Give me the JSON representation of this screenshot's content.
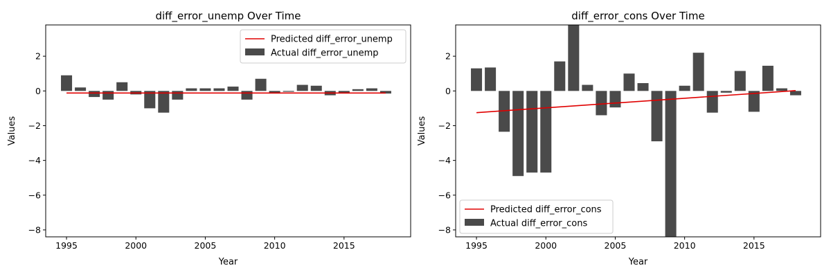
{
  "charts": [
    {
      "type": "bar",
      "title": "diff_error_unemp Over Time",
      "xlabel": "Year",
      "ylabel": "Values",
      "legend_position": "upper-right",
      "x_ticks": [
        1995,
        2000,
        2005,
        2010,
        2015
      ],
      "y_ticks": [
        2,
        0,
        -2,
        -4,
        -6,
        -8
      ],
      "xlim": [
        1993.5,
        2019.8
      ],
      "ylim": [
        -8.4,
        3.8
      ],
      "legend": {
        "line_label": "Predicted diff_error_unemp",
        "bar_label": "Actual diff_error_unemp"
      },
      "colors": {
        "bars": "#4a4a4a",
        "line": "#e00000"
      },
      "chart_data": {
        "type": "bar",
        "x": [
          1995,
          1996,
          1997,
          1998,
          1999,
          2000,
          2001,
          2002,
          2003,
          2004,
          2005,
          2006,
          2007,
          2008,
          2009,
          2010,
          2011,
          2012,
          2013,
          2014,
          2015,
          2016,
          2017,
          2018
        ],
        "series": [
          {
            "name": "Actual diff_error_unemp",
            "kind": "bar",
            "values": [
              0.9,
              0.2,
              -0.35,
              -0.5,
              0.5,
              -0.2,
              -1.0,
              -1.25,
              -0.5,
              0.15,
              0.15,
              0.15,
              0.25,
              -0.5,
              0.7,
              -0.15,
              -0.05,
              0.35,
              0.3,
              -0.25,
              -0.15,
              0.1,
              0.15,
              -0.15
            ]
          },
          {
            "name": "Predicted diff_error_unemp",
            "kind": "line",
            "start": [
              1995,
              -0.12
            ],
            "end": [
              2018,
              -0.12
            ]
          }
        ]
      }
    },
    {
      "type": "bar",
      "title": "diff_error_cons Over Time",
      "xlabel": "Year",
      "ylabel": "Values",
      "legend_position": "lower-left",
      "x_ticks": [
        1995,
        2000,
        2005,
        2010,
        2015
      ],
      "y_ticks": [
        2,
        0,
        -2,
        -4,
        -6,
        -8
      ],
      "xlim": [
        1993.5,
        2019.8
      ],
      "ylim": [
        -8.4,
        3.8
      ],
      "legend": {
        "line_label": "Predicted diff_error_cons",
        "bar_label": "Actual diff_error_cons"
      },
      "colors": {
        "bars": "#4a4a4a",
        "line": "#e00000"
      },
      "chart_data": {
        "type": "bar",
        "x": [
          1995,
          1996,
          1997,
          1998,
          1999,
          2000,
          2001,
          2002,
          2003,
          2004,
          2005,
          2006,
          2007,
          2008,
          2009,
          2010,
          2011,
          2012,
          2013,
          2014,
          2015,
          2016,
          2017,
          2018
        ],
        "series": [
          {
            "name": "Actual diff_error_cons",
            "kind": "bar",
            "values": [
              1.3,
              1.35,
              -2.35,
              -4.9,
              -4.7,
              -4.7,
              1.7,
              3.9,
              0.35,
              -1.4,
              -0.95,
              1.0,
              0.45,
              -2.9,
              -8.4,
              0.3,
              2.2,
              -1.25,
              -0.1,
              1.15,
              -1.2,
              1.45,
              0.15,
              -0.25
            ]
          },
          {
            "name": "Predicted diff_error_cons",
            "kind": "line",
            "start": [
              1995,
              -1.25
            ],
            "end": [
              2018,
              0.02
            ]
          }
        ]
      }
    }
  ]
}
